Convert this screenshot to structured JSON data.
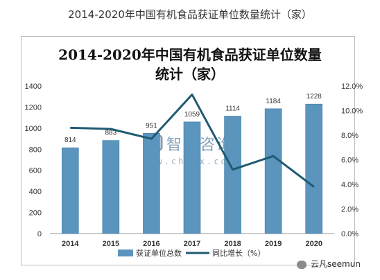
{
  "page_caption": "2014-2020年中国有机食品获证单位数量统计（家）",
  "watermark": {
    "brand": "智研咨询",
    "url": "www.chyxx.com"
  },
  "footer": "云凡seemun",
  "colors": {
    "bar": "#5b95bd",
    "line": "#1f5a72",
    "axis": "#333333"
  },
  "chart_data": {
    "type": "bar",
    "title_line1": "2014-2020年中国有机食品获证单位数量",
    "title_line2": "统计（家）",
    "categories": [
      "2014",
      "2015",
      "2016",
      "2017",
      "2018",
      "2019",
      "2020"
    ],
    "series": [
      {
        "name": "获证单位总数",
        "type": "bar",
        "axis": "left",
        "values": [
          814,
          883,
          951,
          1059,
          1114,
          1184,
          1228
        ],
        "labels": [
          "814",
          "883",
          "951",
          "1059",
          "1114",
          "1184",
          "1228"
        ]
      },
      {
        "name": "同比增长（%）",
        "type": "line",
        "axis": "right",
        "values": [
          8.6,
          8.5,
          7.7,
          11.3,
          5.2,
          6.3,
          3.8
        ]
      }
    ],
    "y_left": {
      "min": 0,
      "max": 1400,
      "ticks": [
        "0",
        "200",
        "400",
        "600",
        "800",
        "1000",
        "1200",
        "1400"
      ]
    },
    "y_right": {
      "min": 0,
      "max": 12,
      "ticks": [
        "0.0%",
        "2.0%",
        "4.0%",
        "6.0%",
        "8.0%",
        "10.0%",
        "12.0%"
      ]
    },
    "grid": false,
    "legend_position": "bottom"
  }
}
